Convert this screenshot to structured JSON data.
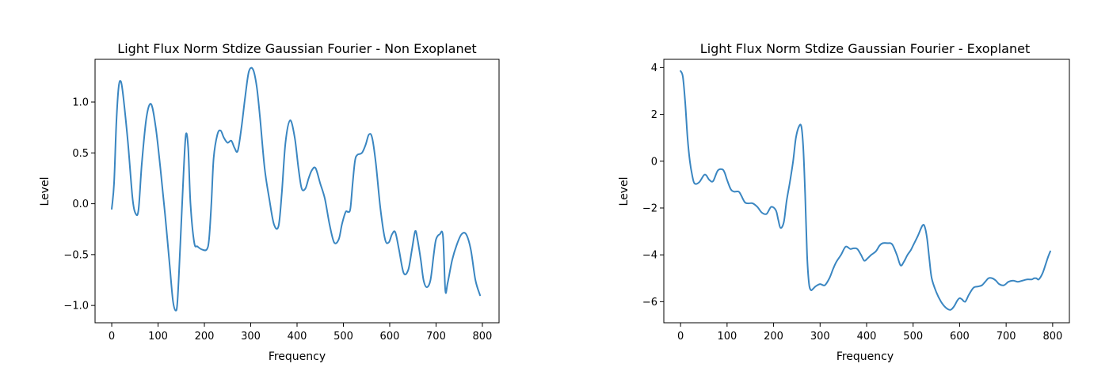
{
  "chart_data": [
    {
      "type": "line",
      "title": "Light Flux Norm Stdize Gaussian Fourier - Non Exoplanet",
      "xlabel": "Frequency",
      "ylabel": "Level",
      "xlim": [
        -36,
        836
      ],
      "ylim": [
        -1.17,
        1.42
      ],
      "xticks": [
        0,
        100,
        200,
        300,
        400,
        500,
        600,
        700,
        800
      ],
      "xtick_labels": [
        "0",
        "100",
        "200",
        "300",
        "400",
        "500",
        "600",
        "700",
        "800"
      ],
      "yticks": [
        -1.0,
        -0.5,
        0.0,
        0.5,
        1.0
      ],
      "ytick_labels": [
        "−1.0",
        "−0.5",
        "0.0",
        "0.5",
        "1.0"
      ],
      "color": "#3a86c1",
      "series": [
        {
          "name": "Non Exoplanet",
          "x": [
            0,
            5,
            10,
            15,
            20,
            25,
            35,
            45,
            52,
            58,
            65,
            75,
            85,
            95,
            105,
            115,
            125,
            132,
            138,
            142,
            148,
            155,
            160,
            165,
            170,
            178,
            185,
            195,
            205,
            210,
            215,
            220,
            228,
            235,
            242,
            250,
            258,
            265,
            272,
            280,
            288,
            296,
            305,
            313,
            320,
            330,
            340,
            350,
            360,
            367,
            375,
            385,
            395,
            403,
            410,
            418,
            425,
            432,
            440,
            450,
            460,
            470,
            480,
            490,
            497,
            505,
            510,
            515,
            520,
            525,
            530,
            540,
            548,
            555,
            562,
            570,
            580,
            590,
            598,
            605,
            612,
            620,
            630,
            640,
            648,
            655,
            660,
            667,
            673,
            680,
            688,
            695,
            700,
            708,
            715,
            720,
            725,
            735,
            745,
            755,
            765,
            775,
            785,
            795
          ],
          "y": [
            -0.05,
            0.2,
            0.8,
            1.15,
            1.2,
            1.05,
            0.6,
            0.05,
            -0.1,
            -0.05,
            0.4,
            0.85,
            0.98,
            0.75,
            0.35,
            -0.1,
            -0.6,
            -0.95,
            -1.05,
            -0.95,
            -0.4,
            0.3,
            0.68,
            0.55,
            0.0,
            -0.38,
            -0.42,
            -0.45,
            -0.45,
            -0.35,
            0.0,
            0.45,
            0.68,
            0.72,
            0.65,
            0.6,
            0.62,
            0.55,
            0.52,
            0.75,
            1.05,
            1.3,
            1.32,
            1.15,
            0.85,
            0.35,
            0.05,
            -0.2,
            -0.22,
            0.1,
            0.6,
            0.82,
            0.65,
            0.35,
            0.15,
            0.15,
            0.25,
            0.33,
            0.35,
            0.2,
            0.05,
            -0.2,
            -0.38,
            -0.35,
            -0.2,
            -0.08,
            -0.08,
            -0.05,
            0.2,
            0.42,
            0.48,
            0.5,
            0.58,
            0.68,
            0.65,
            0.4,
            -0.05,
            -0.35,
            -0.38,
            -0.3,
            -0.28,
            -0.45,
            -0.68,
            -0.65,
            -0.45,
            -0.27,
            -0.35,
            -0.55,
            -0.75,
            -0.82,
            -0.75,
            -0.5,
            -0.35,
            -0.3,
            -0.32,
            -0.85,
            -0.78,
            -0.55,
            -0.4,
            -0.3,
            -0.3,
            -0.45,
            -0.75,
            -0.9
          ]
        }
      ]
    },
    {
      "type": "line",
      "title": "Light Flux Norm Stdize Gaussian Fourier - Exoplanet",
      "xlabel": "Frequency",
      "ylabel": "Level",
      "xlim": [
        -36,
        836
      ],
      "ylim": [
        -6.9,
        4.35
      ],
      "xticks": [
        0,
        100,
        200,
        300,
        400,
        500,
        600,
        700,
        800
      ],
      "xtick_labels": [
        "0",
        "100",
        "200",
        "300",
        "400",
        "500",
        "600",
        "700",
        "800"
      ],
      "yticks": [
        -6,
        -4,
        -2,
        0,
        2,
        4
      ],
      "ytick_labels": [
        "−6",
        "−4",
        "−2",
        "0",
        "2",
        "4"
      ],
      "color": "#3a86c1",
      "series": [
        {
          "name": "Exoplanet",
          "x": [
            0,
            5,
            10,
            15,
            20,
            25,
            30,
            40,
            50,
            55,
            62,
            70,
            80,
            90,
            95,
            100,
            108,
            115,
            125,
            130,
            138,
            145,
            155,
            165,
            175,
            185,
            195,
            205,
            210,
            215,
            222,
            228,
            235,
            242,
            248,
            255,
            260,
            264,
            268,
            272,
            276,
            280,
            285,
            290,
            300,
            310,
            320,
            328,
            335,
            345,
            355,
            365,
            372,
            380,
            388,
            395,
            402,
            410,
            420,
            428,
            435,
            445,
            455,
            465,
            473,
            480,
            488,
            495,
            500,
            510,
            520,
            525,
            530,
            535,
            540,
            550,
            560,
            570,
            580,
            588,
            595,
            600,
            605,
            612,
            620,
            630,
            640,
            648,
            655,
            662,
            670,
            678,
            685,
            695,
            705,
            715,
            725,
            735,
            745,
            755,
            760,
            765,
            770,
            778,
            785,
            790,
            795
          ],
          "y": [
            3.85,
            3.6,
            2.5,
            1.0,
            0.0,
            -0.6,
            -0.95,
            -0.9,
            -0.6,
            -0.6,
            -0.8,
            -0.85,
            -0.4,
            -0.35,
            -0.5,
            -0.8,
            -1.2,
            -1.3,
            -1.3,
            -1.45,
            -1.75,
            -1.8,
            -1.8,
            -1.95,
            -2.2,
            -2.25,
            -1.95,
            -2.1,
            -2.5,
            -2.85,
            -2.6,
            -1.7,
            -0.9,
            0.0,
            1.0,
            1.5,
            1.45,
            0.5,
            -1.5,
            -4.0,
            -5.2,
            -5.5,
            -5.45,
            -5.35,
            -5.25,
            -5.3,
            -5.0,
            -4.6,
            -4.3,
            -4.0,
            -3.65,
            -3.75,
            -3.72,
            -3.75,
            -4.0,
            -4.25,
            -4.15,
            -4.0,
            -3.85,
            -3.6,
            -3.5,
            -3.5,
            -3.55,
            -4.0,
            -4.45,
            -4.3,
            -4.0,
            -3.8,
            -3.6,
            -3.2,
            -2.75,
            -2.8,
            -3.3,
            -4.2,
            -5.0,
            -5.6,
            -6.0,
            -6.25,
            -6.35,
            -6.2,
            -5.95,
            -5.85,
            -5.9,
            -6.0,
            -5.7,
            -5.4,
            -5.35,
            -5.3,
            -5.15,
            -5.0,
            -5.0,
            -5.1,
            -5.25,
            -5.3,
            -5.15,
            -5.1,
            -5.15,
            -5.1,
            -5.05,
            -5.05,
            -5.0,
            -5.0,
            -5.05,
            -4.8,
            -4.4,
            -4.1,
            -3.85
          ]
        }
      ]
    }
  ]
}
